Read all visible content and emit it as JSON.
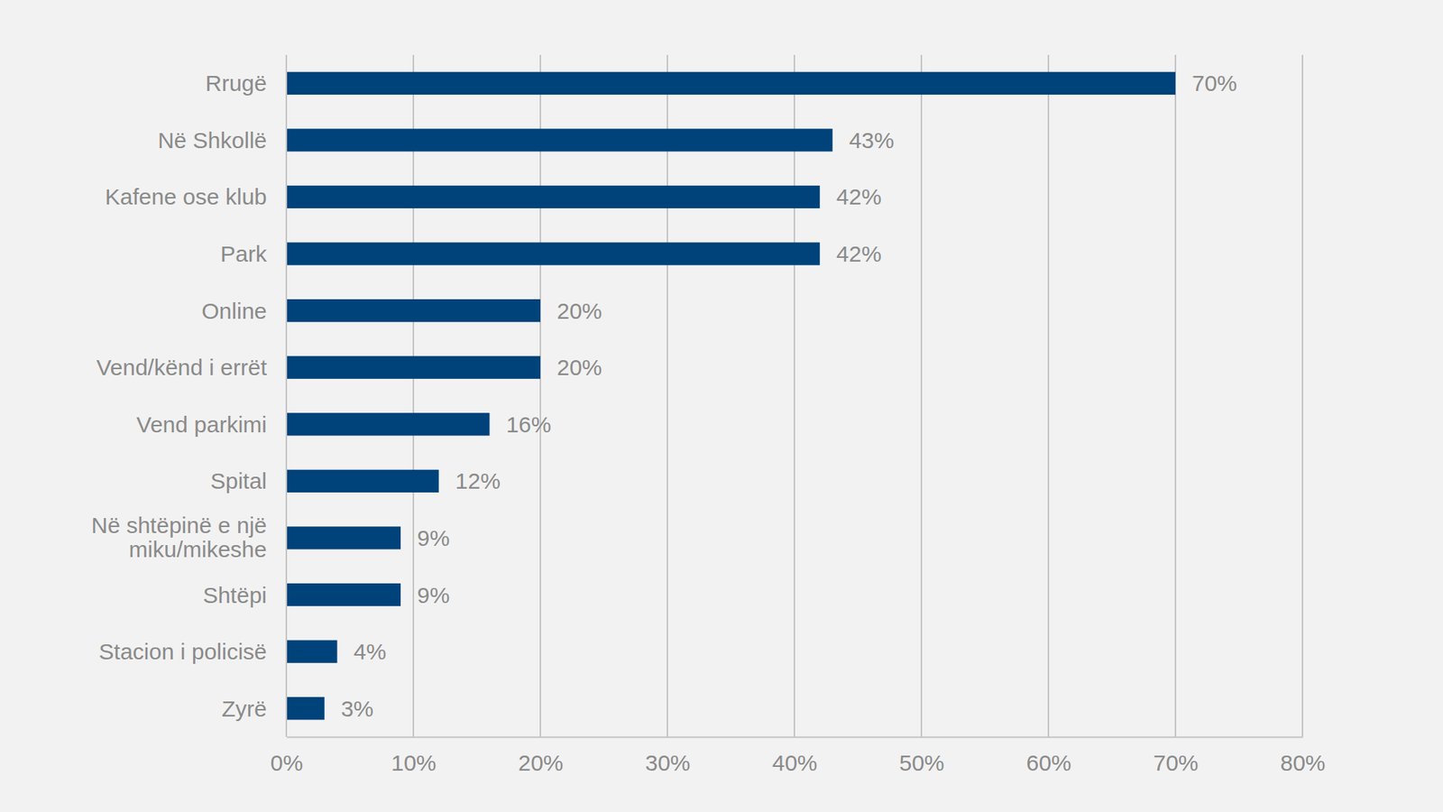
{
  "chart_data": {
    "type": "bar",
    "orientation": "horizontal",
    "categories": [
      "Rrugë",
      "Në Shkollë",
      "Kafene ose klub",
      "Park",
      "Online",
      "Vend/kënd i errët",
      "Vend parkimi",
      "Spital",
      "Në shtëpinë e një miku/mikeshe",
      "Shtëpi",
      "Stacion i policisë",
      "Zyrë"
    ],
    "values": [
      70,
      43,
      42,
      42,
      20,
      20,
      16,
      12,
      9,
      9,
      4,
      3
    ],
    "value_labels": [
      "70%",
      "43%",
      "42%",
      "42%",
      "20%",
      "20%",
      "16%",
      "12%",
      "9%",
      "9%",
      "4%",
      "3%"
    ],
    "color": "#00427a",
    "xlim": [
      0,
      80
    ],
    "xticks": [
      {
        "value": 0,
        "label": "0%"
      },
      {
        "value": 10,
        "label": "10%"
      },
      {
        "value": 20,
        "label": "20%"
      },
      {
        "value": 30,
        "label": "30%"
      },
      {
        "value": 40,
        "label": "40%"
      },
      {
        "value": 50,
        "label": "50%"
      },
      {
        "value": 60,
        "label": "60%"
      },
      {
        "value": 70,
        "label": "70%"
      },
      {
        "value": 80,
        "label": "80%"
      }
    ],
    "grid": true,
    "data_labels": true
  }
}
